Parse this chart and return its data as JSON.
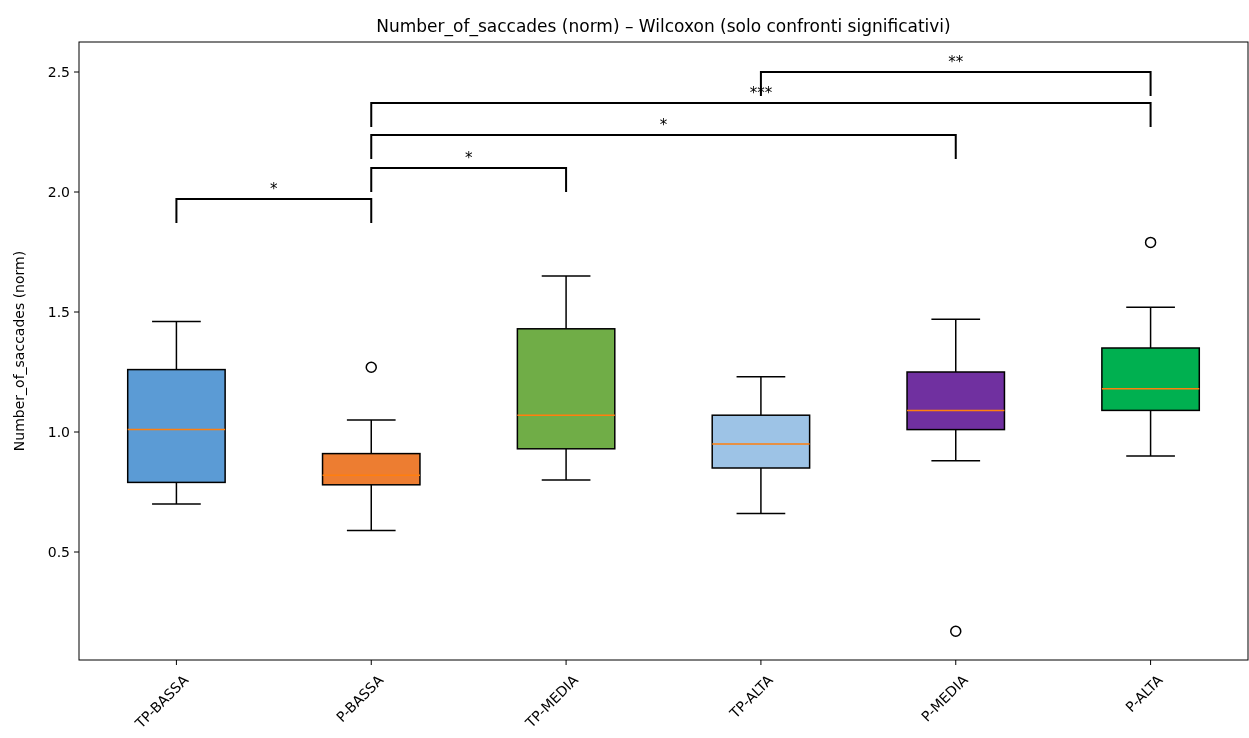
{
  "chart_data": {
    "type": "box",
    "title": "Number_of_saccades (norm) – Wilcoxon (solo confronti significativi)",
    "ylabel": "Number_of_saccades (norm)",
    "categories": [
      "TP-BASSA",
      "P-BASSA",
      "TP-MEDIA",
      "TP-ALTA",
      "P-MEDIA",
      "P-ALTA"
    ],
    "colors": [
      "#5b9bd5",
      "#ed7d31",
      "#70ad47",
      "#9dc3e6",
      "#7030a0",
      "#00b050"
    ],
    "boxes": [
      {
        "low": 0.7,
        "q1": 0.79,
        "median": 1.01,
        "q3": 1.26,
        "high": 1.46
      },
      {
        "low": 0.59,
        "q1": 0.78,
        "median": 0.82,
        "q3": 0.91,
        "high": 1.05,
        "outliers": [
          1.27
        ]
      },
      {
        "low": 0.8,
        "q1": 0.93,
        "median": 1.07,
        "q3": 1.43,
        "high": 1.65
      },
      {
        "low": 0.66,
        "q1": 0.85,
        "median": 0.95,
        "q3": 1.07,
        "high": 1.23
      },
      {
        "low": 0.88,
        "q1": 1.01,
        "median": 1.09,
        "q3": 1.25,
        "high": 1.47,
        "outliers": [
          0.17
        ]
      },
      {
        "low": 0.9,
        "q1": 1.09,
        "median": 1.18,
        "q3": 1.35,
        "high": 1.52,
        "outliers": [
          1.79
        ]
      }
    ],
    "ylim": [
      0.05,
      2.625
    ],
    "yticks": [
      0.5,
      {
        "value": 1,
        "label": "1.0"
      },
      1.5,
      {
        "value": 2,
        "label": "2.0"
      },
      2.5
    ],
    "grid": false,
    "annotations": [
      "*",
      "*",
      "*",
      "***",
      "**"
    ]
  }
}
